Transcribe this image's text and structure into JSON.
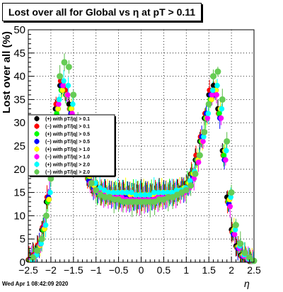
{
  "title": "Lost over all for Global vs   η at pT > 0.11",
  "timestamp": "Wed Apr  1 08:42:09 2020",
  "chart_data": {
    "type": "scatter",
    "title": "Lost over all for Global vs   η at pT > 0.11",
    "xlabel": "η",
    "ylabel": "Lost over all (%)",
    "xlim": [
      -2.5,
      2.5
    ],
    "ylim": [
      0,
      50
    ],
    "grid": true,
    "legend_position": "middle-left",
    "x_ticks": [
      "−2.5",
      "−2",
      "−1.5",
      "−1",
      "−0.5",
      "0",
      "0.5",
      "1",
      "1.5",
      "2",
      "2.5"
    ],
    "y_ticks": [
      "0",
      "5",
      "10",
      "15",
      "20",
      "25",
      "30",
      "35",
      "40",
      "45",
      "50"
    ],
    "x": [
      -2.45,
      -2.35,
      -2.25,
      -2.15,
      -2.05,
      -1.95,
      -1.85,
      -1.75,
      -1.65,
      -1.55,
      -1.45,
      -1.35,
      -1.25,
      -1.15,
      -1.05,
      -0.95,
      -0.85,
      -0.75,
      -0.65,
      -0.55,
      -0.45,
      -0.35,
      -0.25,
      -0.15,
      -0.05,
      0.05,
      0.15,
      0.25,
      0.35,
      0.45,
      0.55,
      0.65,
      0.75,
      0.85,
      0.95,
      1.05,
      1.15,
      1.25,
      1.35,
      1.45,
      1.55,
      1.65,
      1.75,
      1.85,
      1.95,
      2.05,
      2.15,
      2.25,
      2.35,
      2.45
    ],
    "series": [
      {
        "name": "(+) with pT/|q| > 0.1",
        "color": "#000000",
        "values": [
          0.5,
          1.5,
          3.5,
          7,
          13,
          24,
          33,
          38,
          37,
          34,
          30,
          26,
          22,
          19,
          17,
          16,
          15,
          15,
          15,
          15,
          15,
          14.5,
          14.5,
          14.5,
          14.5,
          14.5,
          14.5,
          14.5,
          14.5,
          15,
          15,
          15,
          15,
          15,
          16,
          17,
          19,
          22,
          26,
          31,
          36,
          38,
          33,
          24,
          14,
          7,
          3.5,
          1.5,
          0.7,
          0.2
        ]
      },
      {
        "name": "(−) with pT/|q| > 0.1",
        "color": "#ff0000",
        "values": [
          0.6,
          1.6,
          3.7,
          7.5,
          14,
          25,
          34,
          39,
          37,
          33,
          29,
          25,
          21,
          18,
          16,
          15.5,
          15,
          15,
          14.5,
          14.5,
          14.5,
          14.5,
          14,
          14,
          14,
          14,
          14.5,
          14.5,
          14.5,
          14.5,
          14.5,
          15,
          15,
          15.5,
          16,
          17,
          19,
          23,
          27,
          32,
          37,
          37,
          32,
          23,
          13,
          6.5,
          3.2,
          1.3,
          0.6,
          0.2
        ]
      },
      {
        "name": "(+) with pT/|q| > 0.5",
        "color": "#00ff00",
        "values": [
          0.5,
          1.4,
          3.4,
          7,
          13,
          23,
          32,
          37,
          36,
          33,
          29,
          25,
          21,
          18,
          16,
          15,
          15,
          14.5,
          14.5,
          14.5,
          14.5,
          14.5,
          14.5,
          14.5,
          14.5,
          14.5,
          14.5,
          14.5,
          14.5,
          14.5,
          15,
          15,
          15,
          15,
          16,
          17,
          19,
          22,
          26,
          31,
          35,
          37,
          32,
          23,
          13,
          6.5,
          3.2,
          1.4,
          0.6,
          0.2
        ]
      },
      {
        "name": "(−) with pT/|q| > 0.5",
        "color": "#0000ff",
        "values": [
          0.6,
          1.5,
          3.6,
          7.4,
          14,
          24,
          33,
          38,
          36,
          32,
          28,
          24,
          20,
          17.5,
          16,
          15,
          15,
          14.5,
          14.5,
          14,
          14,
          14,
          14,
          14,
          14,
          14,
          14,
          14,
          14.5,
          14.5,
          14.5,
          15,
          15,
          15,
          15.5,
          16.5,
          18.5,
          22,
          27,
          32,
          36,
          36,
          31,
          22,
          12.5,
          6,
          3,
          1.3,
          0.6,
          0.2
        ]
      },
      {
        "name": "(+) with pT/|q| > 1.0",
        "color": "#ffff00",
        "values": [
          0.5,
          1.5,
          3.6,
          7.2,
          13.5,
          24,
          33,
          37,
          36,
          33,
          29,
          25,
          21.5,
          18.5,
          16.5,
          15.5,
          15,
          15,
          15,
          15,
          15,
          15,
          14.5,
          14.5,
          14.5,
          14.5,
          14.5,
          14.5,
          14.5,
          15,
          15,
          15,
          15,
          15.5,
          16,
          17,
          19,
          22,
          26,
          31,
          35,
          37,
          33,
          24,
          13.5,
          7,
          3.4,
          1.5,
          0.7,
          0.2
        ]
      },
      {
        "name": "(−) with pT/|q| > 1.0",
        "color": "#ff00ff",
        "values": [
          0.7,
          1.7,
          3.9,
          8,
          15,
          26,
          34,
          38,
          36,
          32,
          27.5,
          23.5,
          20,
          17,
          15.5,
          15,
          14.5,
          14,
          14,
          14,
          14,
          13.5,
          13.5,
          13.5,
          13.5,
          13.5,
          13.5,
          13.5,
          14,
          14,
          14,
          14.5,
          14.5,
          15,
          15,
          16,
          18,
          21.5,
          26,
          31,
          36,
          36,
          31,
          22,
          12,
          6,
          3,
          1.3,
          0.6,
          0.2
        ]
      },
      {
        "name": "(+) with pT/|q| > 2.0",
        "color": "#00ffff",
        "values": [
          0.5,
          1.6,
          4,
          8,
          15,
          26,
          35,
          39,
          38,
          34,
          30,
          26,
          22,
          19,
          17,
          16,
          15.5,
          15,
          15,
          15,
          15,
          15,
          15,
          14.5,
          14.5,
          14.5,
          14.5,
          15,
          15,
          15,
          15,
          15,
          15.5,
          15.5,
          16,
          17.5,
          19.5,
          23,
          27,
          32,
          37,
          38,
          33,
          24,
          14,
          7,
          3.5,
          1.6,
          0.7,
          0.2
        ]
      },
      {
        "name": "(−) with pT/|q| > 2.0",
        "color": "#66cc55",
        "values": [
          1,
          2.5,
          5,
          10,
          18,
          30,
          40,
          43,
          42,
          36,
          30,
          25,
          20,
          17,
          15.5,
          14.5,
          14,
          14,
          13.5,
          13.5,
          13,
          13,
          13,
          13,
          13,
          13,
          13,
          13,
          13.5,
          13.5,
          14,
          14,
          14.5,
          15,
          15.5,
          16.5,
          19,
          23,
          28,
          34,
          40,
          41,
          35,
          26,
          15,
          8,
          4,
          2,
          1,
          0.3
        ]
      }
    ]
  }
}
